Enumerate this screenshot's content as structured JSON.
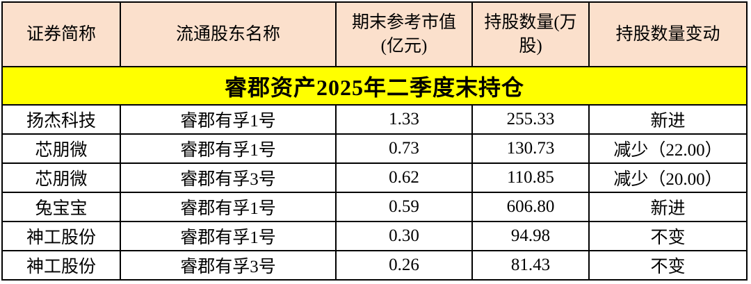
{
  "title": "睿郡资产2025年二季度末持仓",
  "colors": {
    "title_background": "#FFFF00",
    "header_background": "#FBE0CC",
    "row_background": "#FFFFFF",
    "border": "#000000",
    "text": "#000000"
  },
  "chart_data": {
    "type": "table",
    "title": "睿郡资产2025年二季度末持仓",
    "columns": [
      "证券简称",
      "流通股东名称",
      "期末参考市值\n(亿元)",
      "持股数量(万\n股)",
      "持股数量变动"
    ],
    "rows": [
      [
        "扬杰科技",
        "睿郡有孚1号",
        "1.33",
        "255.33",
        "新进"
      ],
      [
        "芯朋微",
        "睿郡有孚1号",
        "0.73",
        "130.73",
        "减少（22.00）"
      ],
      [
        "芯朋微",
        "睿郡有孚3号",
        "0.62",
        "110.85",
        "减少（20.00）"
      ],
      [
        "兔宝宝",
        "睿郡有孚1号",
        "0.59",
        "606.80",
        "新进"
      ],
      [
        "神工股份",
        "睿郡有孚1号",
        "0.30",
        "94.98",
        "不变"
      ],
      [
        "神工股份",
        "睿郡有孚3号",
        "0.26",
        "81.43",
        "不变"
      ]
    ]
  }
}
